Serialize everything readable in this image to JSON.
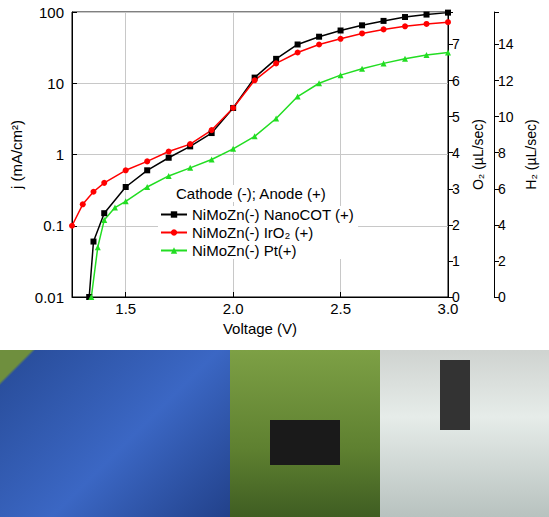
{
  "chart_data": {
    "type": "line",
    "x_label": "Voltage (V)",
    "y_label": "j (mA/cm²)",
    "y2_label": "O₂ (µL/sec)",
    "y3_label": "H₂ (µL/sec)",
    "annotations": [
      "Cathode (-); Anode (+)"
    ],
    "log": "y",
    "grid": true,
    "legend": "lower center",
    "xlim": [
      1.25,
      3.0
    ],
    "xticks": [
      {
        "value": 1.5,
        "label": "1.5"
      },
      {
        "value": 2.0,
        "label": "2.0"
      },
      {
        "value": 2.5,
        "label": "2.5"
      },
      {
        "value": 3.0,
        "label": "3.0"
      }
    ],
    "ylim": [
      0.01,
      100
    ],
    "yticks": [
      0.01,
      0.1,
      1,
      10,
      100
    ],
    "y2lim": [
      0,
      7.9
    ],
    "y2ticks": [
      0,
      1,
      2,
      3,
      4,
      5,
      6,
      7
    ],
    "y3lim": [
      0,
      15.8
    ],
    "y3ticks": [
      0,
      2,
      4,
      6,
      8,
      10,
      12,
      14
    ],
    "series": [
      {
        "name": "NiMoZn(-) NanoCOT (+)",
        "color": "#000000",
        "marker": "square",
        "x": [
          1.33,
          1.35,
          1.4,
          1.5,
          1.6,
          1.7,
          1.8,
          1.9,
          2.0,
          2.1,
          2.2,
          2.3,
          2.4,
          2.5,
          2.6,
          2.7,
          2.8,
          2.9,
          3.0
        ],
        "values": [
          0.01,
          0.06,
          0.15,
          0.35,
          0.6,
          0.9,
          1.3,
          2.0,
          4.5,
          12,
          22,
          35,
          45,
          55,
          65,
          75,
          85,
          92,
          98
        ]
      },
      {
        "name": "NiMoZn(-) IrO₂ (+)",
        "color": "#ff0000",
        "marker": "circle",
        "x": [
          1.25,
          1.3,
          1.35,
          1.4,
          1.5,
          1.6,
          1.7,
          1.8,
          1.9,
          2.0,
          2.1,
          2.2,
          2.3,
          2.4,
          2.5,
          2.6,
          2.7,
          2.8,
          2.9,
          3.0
        ],
        "values": [
          0.1,
          0.2,
          0.3,
          0.4,
          0.6,
          0.8,
          1.1,
          1.4,
          2.2,
          4.5,
          11,
          19,
          27,
          35,
          42,
          50,
          57,
          63,
          68,
          72
        ]
      },
      {
        "name": "NiMoZn(-) Pt(+)",
        "color": "#22dd22",
        "marker": "triangle",
        "x": [
          1.34,
          1.37,
          1.4,
          1.45,
          1.5,
          1.6,
          1.7,
          1.8,
          1.9,
          2.0,
          2.1,
          2.2,
          2.3,
          2.4,
          2.5,
          2.6,
          2.7,
          2.8,
          2.9,
          3.0
        ],
        "values": [
          0.01,
          0.05,
          0.12,
          0.18,
          0.22,
          0.35,
          0.5,
          0.65,
          0.85,
          1.2,
          1.8,
          3.2,
          6.5,
          10,
          13,
          16,
          19,
          22,
          25,
          27
        ]
      }
    ]
  }
}
